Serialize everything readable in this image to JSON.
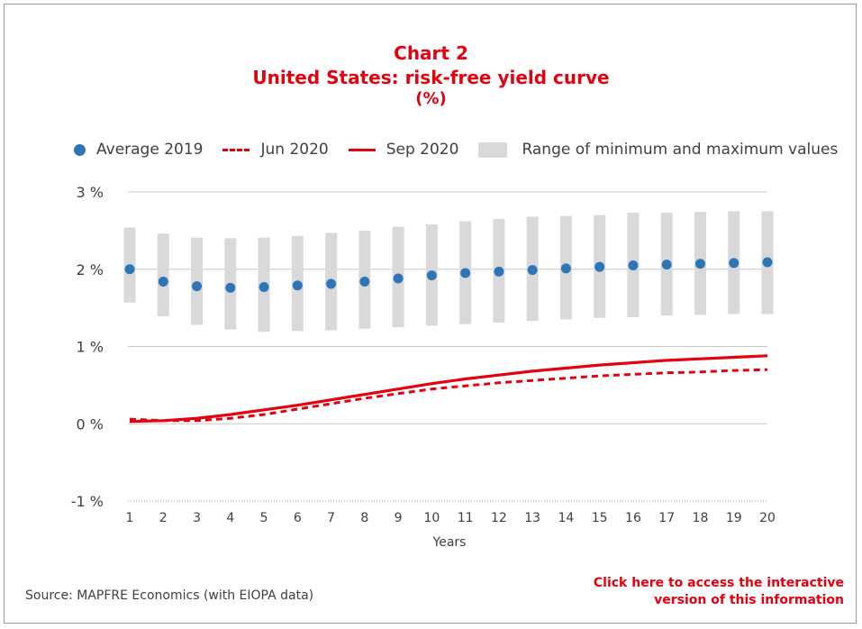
{
  "header": {
    "title": "Chart 2",
    "subtitle": "United States: risk-free yield curve",
    "unit": "(%)"
  },
  "legend": {
    "avg": "Average 2019",
    "jun": "Jun 2020",
    "sep": "Sep 2020",
    "range": "Range of minimum and maximum values"
  },
  "footer": {
    "source": "Source: MAPFRE Economics (with EIOPA data)",
    "cta_line1": "Click here to access the interactive",
    "cta_line2": "version of this information"
  },
  "colors": {
    "accent": "#e3000f",
    "dots": "#2e75b6",
    "range": "#d9d9d9",
    "grid": "#c8c8c8"
  },
  "chart_data": {
    "type": "line",
    "title": "Chart 2",
    "subtitle": "United States: risk-free yield curve",
    "xlabel": "Years",
    "ylabel": "",
    "x": [
      1,
      2,
      3,
      4,
      5,
      6,
      7,
      8,
      9,
      10,
      11,
      12,
      13,
      14,
      15,
      16,
      17,
      18,
      19,
      20
    ],
    "ylim": [
      -1,
      3
    ],
    "yticks": [
      -1,
      0,
      1,
      2,
      3
    ],
    "ytick_labels": [
      "-1 %",
      "0 %",
      "1 %",
      "2 %",
      "3 %"
    ],
    "grid": true,
    "legend_position": "top",
    "series": [
      {
        "name": "Average 2019",
        "kind": "scatter",
        "values": [
          2.0,
          1.84,
          1.78,
          1.76,
          1.77,
          1.79,
          1.81,
          1.84,
          1.88,
          1.92,
          1.95,
          1.97,
          1.99,
          2.01,
          2.03,
          2.05,
          2.06,
          2.07,
          2.08,
          2.09
        ]
      },
      {
        "name": "Jun 2020",
        "kind": "dashed-line",
        "values": [
          0.06,
          0.04,
          0.04,
          0.07,
          0.12,
          0.19,
          0.26,
          0.33,
          0.39,
          0.45,
          0.49,
          0.53,
          0.56,
          0.59,
          0.62,
          0.64,
          0.66,
          0.67,
          0.69,
          0.7
        ]
      },
      {
        "name": "Sep 2020",
        "kind": "line",
        "values": [
          0.03,
          0.04,
          0.07,
          0.12,
          0.18,
          0.24,
          0.31,
          0.38,
          0.45,
          0.52,
          0.58,
          0.63,
          0.68,
          0.72,
          0.76,
          0.79,
          0.82,
          0.84,
          0.86,
          0.88
        ]
      },
      {
        "name": "Range of minimum and maximum values",
        "kind": "range",
        "low": [
          1.57,
          1.39,
          1.28,
          1.22,
          1.19,
          1.2,
          1.21,
          1.23,
          1.25,
          1.27,
          1.29,
          1.31,
          1.33,
          1.35,
          1.37,
          1.38,
          1.4,
          1.41,
          1.42,
          1.42
        ],
        "high": [
          2.54,
          2.46,
          2.41,
          2.4,
          2.41,
          2.43,
          2.47,
          2.5,
          2.55,
          2.58,
          2.62,
          2.65,
          2.68,
          2.69,
          2.7,
          2.73,
          2.73,
          2.74,
          2.75,
          2.75
        ]
      }
    ]
  }
}
